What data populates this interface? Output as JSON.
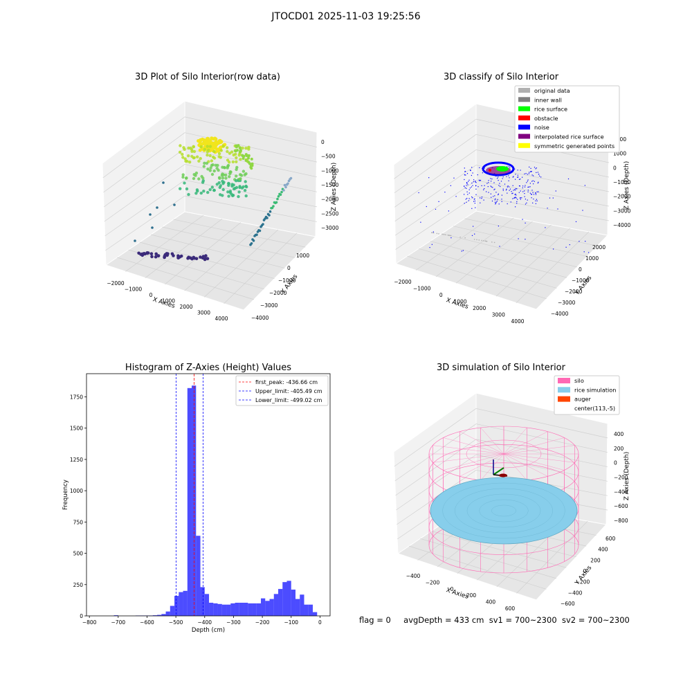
{
  "figure": {
    "suptitle": "JTOCD01 2025-11-03 19:25:56",
    "footer": {
      "flag": "flag = 0",
      "avg_depth": "avgDepth = 433 cm",
      "sv1": "sv1 = 700~2300",
      "sv2": "sv2 = 700~2300"
    }
  },
  "panels": {
    "raw": {
      "title": "3D Plot of Silo Interior(row data)",
      "xlabel": "X Axies",
      "ylabel": "Y Axies",
      "zlabel": "Z Axies (Depth)",
      "xticks": [
        "−2000",
        "−1000",
        "0",
        "1000",
        "2000",
        "3000",
        "4000"
      ],
      "yticks": [
        "1000",
        "0",
        "−1000",
        "−2000",
        "−3000",
        "−4000"
      ],
      "zticks": [
        "0",
        "−500",
        "−1000",
        "−1500",
        "−2000",
        "−2500",
        "−3000"
      ]
    },
    "classify": {
      "title": "3D classify of Silo Interior",
      "xlabel": "X Axies",
      "ylabel": "Y Axies",
      "zlabel": "Z Axies (Depth)",
      "xticks": [
        "−2000",
        "−1000",
        "0",
        "1000",
        "2000",
        "3000",
        "4000"
      ],
      "yticks": [
        "2000",
        "1000",
        "0",
        "−1000",
        "−2000",
        "−3000",
        "−4000"
      ],
      "zticks": [
        "2000",
        "1000",
        "0",
        "−1000",
        "−2000",
        "−3000",
        "−4000"
      ],
      "legend": [
        {
          "label": "original data",
          "color": "#b0b0b0"
        },
        {
          "label": "inner wall",
          "color": "#808080"
        },
        {
          "label": "rice surface",
          "color": "#00ff00"
        },
        {
          "label": "obstacle",
          "color": "#ff0000"
        },
        {
          "label": "noise",
          "color": "#0000ff"
        },
        {
          "label": "interpolated rice surface",
          "color": "#800080"
        },
        {
          "label": "symmetric generated points",
          "color": "#ffff00"
        }
      ]
    },
    "simulation": {
      "title": "3D simulation of Silo Interior",
      "xlabel": "X Axies",
      "ylabel": "Y Axies",
      "zlabel": "Z Axies (Depth)",
      "xticks": [
        "−400",
        "−200",
        "0",
        "200",
        "400",
        "600"
      ],
      "yticks": [
        "600",
        "400",
        "200",
        "0",
        "−200",
        "−400",
        "−600"
      ],
      "zticks": [
        "400",
        "200",
        "0",
        "−200",
        "−400",
        "−600",
        "−800"
      ],
      "legend": [
        {
          "label": "silo",
          "color": "#ff69b4"
        },
        {
          "label": "rice simulation",
          "color": "#87ceeb"
        },
        {
          "label": "auger",
          "color": "#ff4500"
        },
        {
          "label": "center(113,-5)",
          "color": "#ffffff"
        }
      ]
    }
  },
  "chart_data": {
    "type": "bar",
    "title": "Histogram of Z-Axies (Height) Values",
    "xlabel": "Depth (cm)",
    "ylabel": "Frequency",
    "xlim": [
      -810,
      35
    ],
    "ylim": [
      0,
      1935
    ],
    "xticks": [
      -800,
      -700,
      -600,
      -500,
      -400,
      -300,
      -200,
      -100,
      0
    ],
    "yticks": [
      0,
      250,
      500,
      750,
      1000,
      1250,
      1500,
      1750
    ],
    "bar_color": "#0000ff",
    "bins": [
      {
        "x0": -715,
        "x1": -700,
        "v": 5
      },
      {
        "x0": -640,
        "x1": -625,
        "v": 3
      },
      {
        "x0": -625,
        "x1": -610,
        "v": 3
      },
      {
        "x0": -610,
        "x1": -595,
        "v": 3
      },
      {
        "x0": -595,
        "x1": -580,
        "v": 3
      },
      {
        "x0": -580,
        "x1": -565,
        "v": 5
      },
      {
        "x0": -565,
        "x1": -550,
        "v": 8
      },
      {
        "x0": -550,
        "x1": -535,
        "v": 15
      },
      {
        "x0": -535,
        "x1": -520,
        "v": 35
      },
      {
        "x0": -520,
        "x1": -505,
        "v": 80
      },
      {
        "x0": -505,
        "x1": -490,
        "v": 160
      },
      {
        "x0": -490,
        "x1": -475,
        "v": 190
      },
      {
        "x0": -475,
        "x1": -460,
        "v": 200
      },
      {
        "x0": -460,
        "x1": -445,
        "v": 1820
      },
      {
        "x0": -445,
        "x1": -430,
        "v": 1840
      },
      {
        "x0": -430,
        "x1": -415,
        "v": 640
      },
      {
        "x0": -415,
        "x1": -400,
        "v": 230
      },
      {
        "x0": -400,
        "x1": -385,
        "v": 175
      },
      {
        "x0": -385,
        "x1": -370,
        "v": 105
      },
      {
        "x0": -370,
        "x1": -355,
        "v": 100
      },
      {
        "x0": -355,
        "x1": -340,
        "v": 95
      },
      {
        "x0": -340,
        "x1": -325,
        "v": 90
      },
      {
        "x0": -325,
        "x1": -310,
        "v": 90
      },
      {
        "x0": -310,
        "x1": -295,
        "v": 100
      },
      {
        "x0": -295,
        "x1": -280,
        "v": 105
      },
      {
        "x0": -280,
        "x1": -265,
        "v": 105
      },
      {
        "x0": -265,
        "x1": -250,
        "v": 105
      },
      {
        "x0": -250,
        "x1": -235,
        "v": 100
      },
      {
        "x0": -235,
        "x1": -220,
        "v": 100
      },
      {
        "x0": -220,
        "x1": -205,
        "v": 100
      },
      {
        "x0": -205,
        "x1": -190,
        "v": 140
      },
      {
        "x0": -190,
        "x1": -175,
        "v": 120
      },
      {
        "x0": -175,
        "x1": -160,
        "v": 135
      },
      {
        "x0": -160,
        "x1": -145,
        "v": 175
      },
      {
        "x0": -145,
        "x1": -130,
        "v": 215
      },
      {
        "x0": -130,
        "x1": -115,
        "v": 270
      },
      {
        "x0": -115,
        "x1": -100,
        "v": 280
      },
      {
        "x0": -100,
        "x1": -85,
        "v": 210
      },
      {
        "x0": -85,
        "x1": -70,
        "v": 135
      },
      {
        "x0": -70,
        "x1": -55,
        "v": 170
      },
      {
        "x0": -55,
        "x1": -40,
        "v": 90
      },
      {
        "x0": -40,
        "x1": -25,
        "v": 90
      },
      {
        "x0": -25,
        "x1": -10,
        "v": 30
      }
    ],
    "vlines": [
      {
        "label": "first_peak: -436.66 cm",
        "x": -436.66,
        "color": "#ff0000"
      },
      {
        "label": "Upper_limit: -405.49 cm",
        "x": -405.49,
        "color": "#0000ff"
      },
      {
        "label": "Lower_limit: -499.02 cm",
        "x": -499.02,
        "color": "#0000ff"
      }
    ]
  }
}
